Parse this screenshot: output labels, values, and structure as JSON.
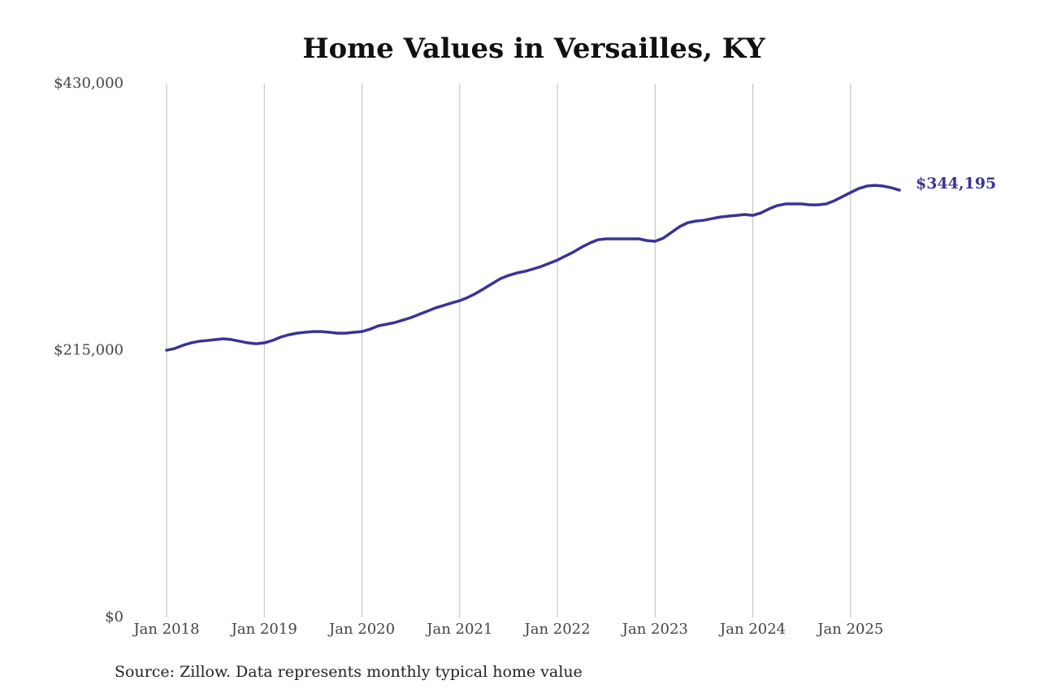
{
  "chart_data": {
    "type": "line",
    "title": "Home Values in Versailles, KY",
    "source": "Source: Zillow. Data represents monthly typical home value",
    "x": [
      "2018-01",
      "2018-02",
      "2018-03",
      "2018-04",
      "2018-05",
      "2018-06",
      "2018-07",
      "2018-08",
      "2018-09",
      "2018-10",
      "2018-11",
      "2018-12",
      "2019-01",
      "2019-02",
      "2019-03",
      "2019-04",
      "2019-05",
      "2019-06",
      "2019-07",
      "2019-08",
      "2019-09",
      "2019-10",
      "2019-11",
      "2019-12",
      "2020-01",
      "2020-02",
      "2020-03",
      "2020-04",
      "2020-05",
      "2020-06",
      "2020-07",
      "2020-08",
      "2020-09",
      "2020-10",
      "2020-11",
      "2020-12",
      "2021-01",
      "2021-02",
      "2021-03",
      "2021-04",
      "2021-05",
      "2021-06",
      "2021-07",
      "2021-08",
      "2021-09",
      "2021-10",
      "2021-11",
      "2021-12",
      "2022-01",
      "2022-02",
      "2022-03",
      "2022-04",
      "2022-05",
      "2022-06",
      "2022-07",
      "2022-08",
      "2022-09",
      "2022-10",
      "2022-11",
      "2022-12",
      "2023-01",
      "2023-02",
      "2023-03",
      "2023-04",
      "2023-05",
      "2023-06",
      "2023-07",
      "2023-08",
      "2023-09",
      "2023-10",
      "2023-11",
      "2023-12",
      "2024-01",
      "2024-02",
      "2024-03",
      "2024-04",
      "2024-05",
      "2024-06",
      "2024-07",
      "2024-08",
      "2024-09",
      "2024-10",
      "2024-11",
      "2024-12",
      "2025-01",
      "2025-02",
      "2025-03",
      "2025-04",
      "2025-05",
      "2025-06",
      "2025-07"
    ],
    "series": [
      {
        "color": "#3a3397",
        "values": [
          215300,
          216600,
          219200,
          221200,
          222500,
          223100,
          223800,
          224500,
          223800,
          222500,
          221200,
          220500,
          221200,
          223100,
          225800,
          227700,
          229000,
          229700,
          230300,
          230300,
          229700,
          229000,
          229000,
          229700,
          230300,
          232300,
          234900,
          236200,
          237500,
          239500,
          241500,
          244100,
          246700,
          249300,
          251300,
          253300,
          255200,
          257800,
          261100,
          265000,
          269000,
          272900,
          275500,
          277500,
          278800,
          280700,
          282700,
          285300,
          287900,
          291200,
          294500,
          298400,
          301700,
          304300,
          305000,
          305000,
          305000,
          305000,
          305000,
          303600,
          303000,
          305600,
          310200,
          314800,
          318000,
          319300,
          320000,
          321300,
          322600,
          323300,
          323900,
          324600,
          323900,
          325900,
          329200,
          331800,
          333100,
          333100,
          333100,
          332400,
          332400,
          333100,
          335700,
          339000,
          342300,
          345500,
          347500,
          348100,
          347500,
          346200,
          344195
        ],
        "value_labels": [
          null,
          null,
          null,
          null,
          null,
          null,
          null,
          null,
          null,
          null,
          null,
          null,
          null,
          null,
          null,
          null,
          null,
          null,
          null,
          null,
          null,
          null,
          null,
          null,
          null,
          null,
          null,
          null,
          null,
          null,
          null,
          null,
          null,
          null,
          null,
          null,
          null,
          null,
          null,
          null,
          null,
          null,
          null,
          null,
          null,
          null,
          null,
          null,
          null,
          null,
          null,
          null,
          null,
          null,
          null,
          null,
          null,
          null,
          null,
          null,
          null,
          null,
          null,
          null,
          null,
          null,
          null,
          null,
          null,
          null,
          null,
          null,
          null,
          null,
          null,
          null,
          null,
          null,
          null,
          null,
          null,
          null,
          null,
          null,
          null,
          null,
          null,
          null,
          null,
          null,
          "$344,195"
        ]
      }
    ],
    "xlim": [
      "2018-01",
      "2025-07"
    ],
    "xticks": [
      {
        "value": "2018-01",
        "label": "Jan 2018"
      },
      {
        "value": "2019-01",
        "label": "Jan 2019"
      },
      {
        "value": "2020-01",
        "label": "Jan 2020"
      },
      {
        "value": "2021-01",
        "label": "Jan 2021"
      },
      {
        "value": "2022-01",
        "label": "Jan 2022"
      },
      {
        "value": "2023-01",
        "label": "Jan 2023"
      },
      {
        "value": "2024-01",
        "label": "Jan 2024"
      },
      {
        "value": "2025-01",
        "label": "Jan 2025"
      }
    ],
    "ylim": [
      0,
      430000
    ],
    "yticks": [
      {
        "value": 0,
        "label": "$0"
      },
      {
        "value": 215000,
        "label": "$215,000"
      },
      {
        "value": 430000,
        "label": "$430,000"
      }
    ],
    "grid": "x"
  }
}
